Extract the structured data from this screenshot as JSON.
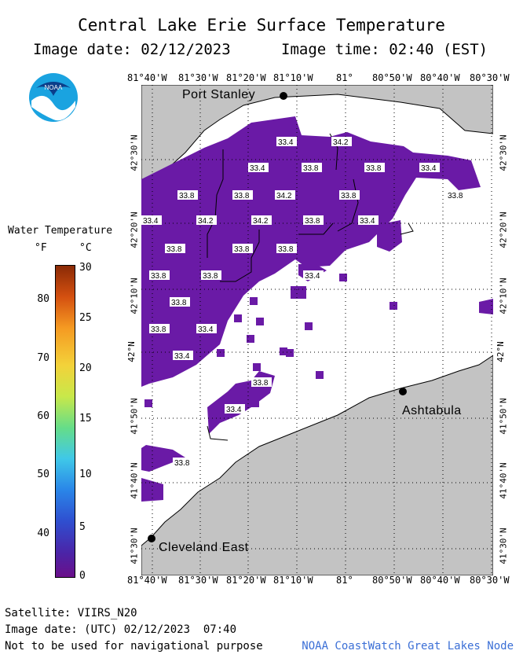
{
  "title": "Central Lake Erie Surface Temperature",
  "image_date_label": "Image date: 02/12/2023",
  "image_time_label": "Image time: 02:40 (EST)",
  "logo_text": "NOAA",
  "legend": {
    "title": "Water Temperature",
    "unit_f": "°F",
    "unit_c": "°C",
    "f_ticks": [
      "80",
      "70",
      "60",
      "50",
      "40"
    ],
    "c_ticks": [
      "30",
      "25",
      "20",
      "15",
      "10",
      "5",
      "0"
    ]
  },
  "map": {
    "lon_labels": [
      "81°40'W",
      "81°30'W",
      "81°20'W",
      "81°10'W",
      "81°",
      "80°50'W",
      "80°40'W",
      "80°30'W"
    ],
    "lat_labels": [
      "42°30'N",
      "42°20'N",
      "42°10'N",
      "42°N",
      "41°50'N",
      "41°40'N",
      "41°30'N"
    ],
    "cities": [
      {
        "name": "Port Stanley"
      },
      {
        "name": "Ashtabula"
      },
      {
        "name": "Cleveland East"
      }
    ],
    "temp_labels": [
      "33.4",
      "34.2",
      "33.4",
      "33.8",
      "33.8",
      "33.4",
      "33.8",
      "33.8",
      "34.2",
      "33.8",
      "33.8",
      "33.4",
      "34.2",
      "34.2",
      "33.8",
      "33.4",
      "33.8",
      "33.8",
      "33.8",
      "33.8",
      "33.8",
      "33.4",
      "33.8",
      "33.8",
      "33.4",
      "33.4",
      "33.8",
      "33.4",
      "33.8"
    ],
    "colors": {
      "land": "#c3c3c3",
      "water": "#ffffff",
      "ice_free_temp": "#6a1aa6"
    }
  },
  "footer": {
    "satellite": "Satellite: VIIRS_N20",
    "utc_date": "Image date: (UTC) 02/12/2023  07:40",
    "warning": "Not to be used for navigational purpose",
    "credit": "NOAA CoastWatch Great Lakes Node"
  }
}
